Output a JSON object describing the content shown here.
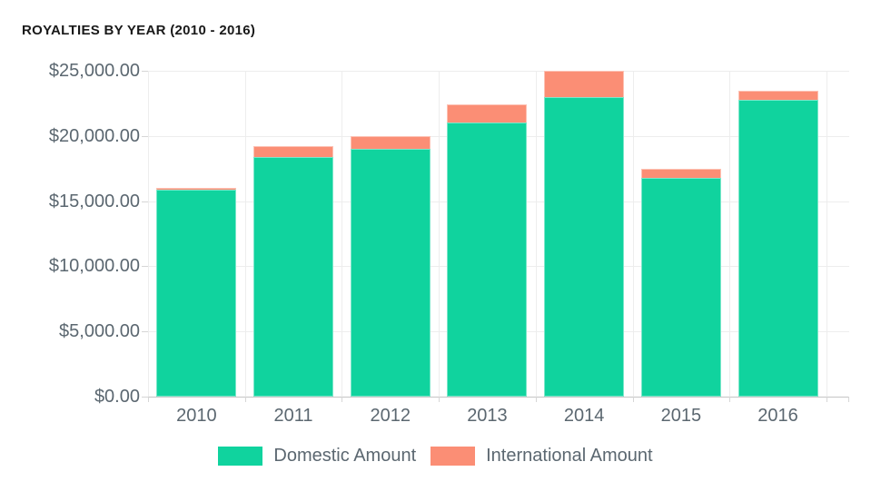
{
  "title": "ROYALTIES BY YEAR (2010 - 2016)",
  "chart_data": {
    "type": "bar",
    "stacked": true,
    "title": "ROYALTIES BY YEAR (2010 - 2016)",
    "categories": [
      "2010",
      "2011",
      "2012",
      "2013",
      "2014",
      "2015",
      "2016"
    ],
    "series": [
      {
        "name": "Domestic Amount",
        "color": "#10D39E",
        "values": [
          15850,
          18400,
          19000,
          21000,
          23000,
          16800,
          22800
        ]
      },
      {
        "name": "International Amount",
        "color": "#FB8E75",
        "values": [
          150,
          800,
          1000,
          1400,
          2000,
          650,
          700
        ]
      }
    ],
    "totals": [
      16000,
      19200,
      20000,
      22400,
      25000,
      17450,
      23500
    ],
    "xlabel": "",
    "ylabel": "",
    "ylim": [
      0,
      25000
    ],
    "yticks": [
      {
        "value": 0,
        "label": "$0.00"
      },
      {
        "value": 5000,
        "label": "$5,000.00"
      },
      {
        "value": 10000,
        "label": "$10,000.00"
      },
      {
        "value": 15000,
        "label": "$15,000.00"
      },
      {
        "value": 20000,
        "label": "$20,000.00"
      },
      {
        "value": 25000,
        "label": "$25,000.00"
      }
    ],
    "grid": true,
    "legend_position": "bottom"
  }
}
